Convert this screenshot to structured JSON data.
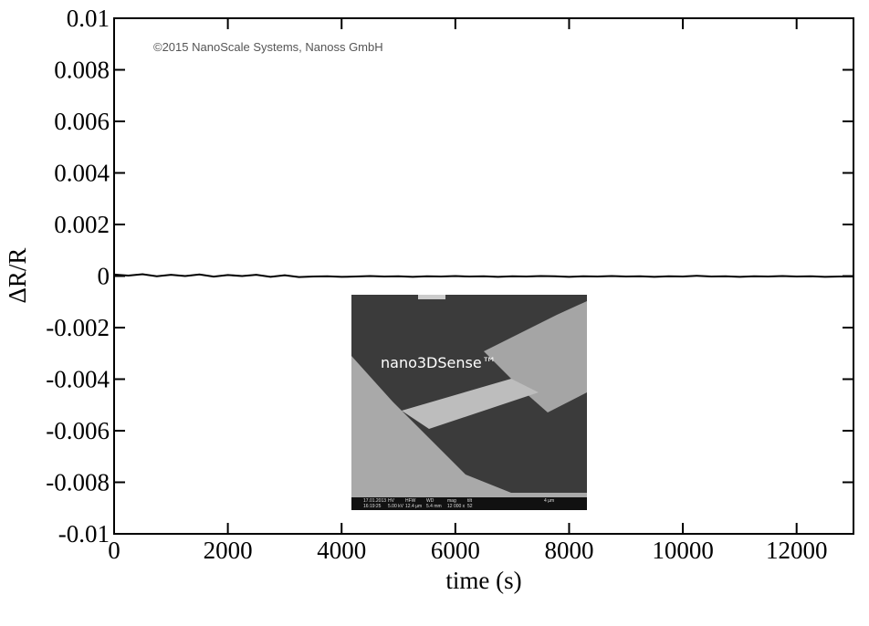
{
  "chart_data": {
    "type": "line",
    "xlabel": "time (s)",
    "ylabel": "ΔR/R",
    "annotations": [
      "©2015 NanoScale Systems, Nanoss GmbH",
      "nano3DSense™"
    ],
    "inset_info": [
      "17.01.2013",
      "16:19:25",
      "HV",
      "5.00 kV",
      "HFW",
      "12.4 µm",
      "WD",
      "5.4 mm",
      "mag",
      "12 000 x",
      "tilt",
      "52",
      "4 µm"
    ],
    "xlim": [
      0,
      13000
    ],
    "xticks": [
      0,
      2000,
      4000,
      6000,
      8000,
      10000,
      12000
    ],
    "ylim": [
      -0.01,
      0.01
    ],
    "yticks": [
      0.01,
      0.008,
      0.006,
      0.004,
      0.002,
      0,
      -0.002,
      -0.004,
      -0.006,
      -0.008,
      -0.01
    ],
    "series": [
      {
        "color": "#000000",
        "x": [
          0,
          250,
          500,
          750,
          1000,
          1250,
          1500,
          1750,
          2000,
          2250,
          2500,
          2750,
          3000,
          3250,
          3500,
          3750,
          4000,
          4250,
          4500,
          4750,
          5000,
          5250,
          5500,
          5750,
          6000,
          6250,
          6500,
          6750,
          7000,
          7250,
          7500,
          7750,
          8000,
          8250,
          8500,
          8750,
          9000,
          9250,
          9500,
          9750,
          10000,
          10250,
          10500,
          10750,
          11000,
          11250,
          11500,
          11750,
          12000,
          12250,
          12500,
          12750,
          13000
        ],
        "values": [
          6e-05,
          2e-05,
          7e-05,
          -1e-05,
          5e-05,
          0.0,
          6e-05,
          -2e-05,
          4e-05,
          0.0,
          5e-05,
          -3e-05,
          3e-05,
          -4e-05,
          -2e-05,
          -1e-05,
          -3e-05,
          -2e-05,
          0.0,
          -2e-05,
          -1e-05,
          -3e-05,
          -1e-05,
          -2e-05,
          0.0,
          -2e-05,
          -1e-05,
          -3e-05,
          -1e-05,
          -2e-05,
          0.0,
          -1e-05,
          -3e-05,
          -1e-05,
          -2e-05,
          0.0,
          -2e-05,
          -1e-05,
          -3e-05,
          -1e-05,
          -2e-05,
          1e-05,
          -2e-05,
          -1e-05,
          -3e-05,
          -1e-05,
          -2e-05,
          0.0,
          -2e-05,
          -1e-05,
          -3e-05,
          -2e-05,
          -2e-05
        ]
      }
    ]
  }
}
